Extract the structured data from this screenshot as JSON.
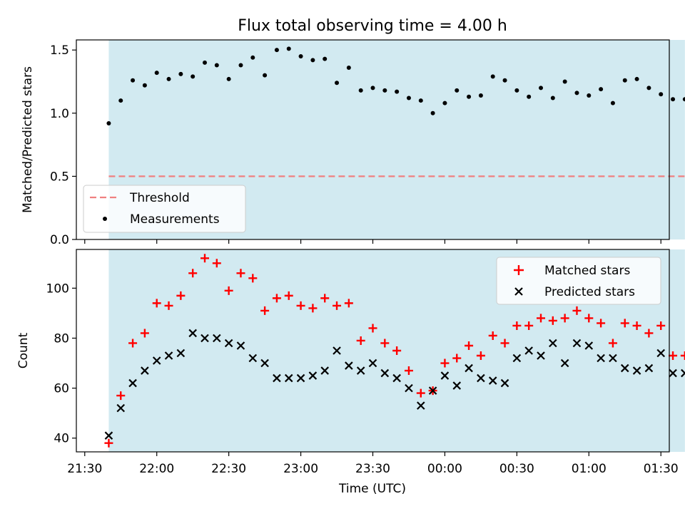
{
  "title": "Flux total observing time = 4.00 h",
  "colors": {
    "band": "#add8e6",
    "threshold": "#f08080",
    "measurement": "#000000",
    "matched": "#ff0000",
    "predicted": "#000000"
  },
  "chart_data": [
    {
      "type": "scatter",
      "ylabel": "Matched/Predicted stars",
      "ylim": [
        0,
        1.58
      ],
      "yticks": [
        0.0,
        0.5,
        1.0,
        1.5
      ],
      "ytick_labels": [
        "0.0",
        "0.5",
        "1.0",
        "1.5"
      ],
      "shaded_span": [
        "21:40",
        "01:40"
      ],
      "legend": {
        "position": "lower-left",
        "entries": [
          "Threshold",
          "Measurements"
        ]
      },
      "threshold": {
        "name": "Threshold",
        "value": 0.5,
        "x_range": [
          "21:40",
          "01:40"
        ]
      },
      "series": [
        {
          "name": "Measurements",
          "x": [
            "21:40",
            "21:45",
            "21:50",
            "21:55",
            "22:00",
            "22:05",
            "22:10",
            "22:15",
            "22:20",
            "22:25",
            "22:30",
            "22:35",
            "22:40",
            "22:45",
            "22:50",
            "22:55",
            "23:00",
            "23:05",
            "23:10",
            "23:15",
            "23:20",
            "23:25",
            "23:30",
            "23:35",
            "23:40",
            "23:45",
            "23:50",
            "23:55",
            "00:00",
            "00:05",
            "00:10",
            "00:15",
            "00:20",
            "00:25",
            "00:30",
            "00:35",
            "00:40",
            "00:45",
            "00:50",
            "00:55",
            "01:00",
            "01:05",
            "01:10",
            "01:15",
            "01:20",
            "01:25",
            "01:30",
            "01:35",
            "01:40"
          ],
          "y": [
            0.92,
            1.1,
            1.26,
            1.22,
            1.32,
            1.27,
            1.31,
            1.29,
            1.4,
            1.38,
            1.27,
            1.38,
            1.44,
            1.3,
            1.5,
            1.51,
            1.45,
            1.42,
            1.43,
            1.24,
            1.36,
            1.18,
            1.2,
            1.18,
            1.17,
            1.12,
            1.1,
            1.0,
            1.08,
            1.18,
            1.13,
            1.14,
            1.29,
            1.26,
            1.18,
            1.13,
            1.2,
            1.12,
            1.25,
            1.16,
            1.14,
            1.19,
            1.08,
            1.26,
            1.27,
            1.2,
            1.15,
            1.11,
            1.11
          ]
        }
      ]
    },
    {
      "type": "scatter",
      "xlabel": "Time (UTC)",
      "ylabel": "Count",
      "ylim": [
        34.5,
        115.5
      ],
      "yticks": [
        40,
        60,
        80,
        100
      ],
      "ytick_labels": [
        "40",
        "60",
        "80",
        "100"
      ],
      "xticks": [
        "21:30",
        "22:00",
        "22:30",
        "23:00",
        "23:30",
        "00:00",
        "00:30",
        "01:00",
        "01:30"
      ],
      "shaded_span": [
        "21:40",
        "01:40"
      ],
      "legend": {
        "position": "top-right",
        "entries": [
          "Matched stars",
          "Predicted stars"
        ]
      },
      "series": [
        {
          "name": "Matched stars",
          "marker": "+",
          "x": [
            "21:40",
            "21:45",
            "21:50",
            "21:55",
            "22:00",
            "22:05",
            "22:10",
            "22:15",
            "22:20",
            "22:25",
            "22:30",
            "22:35",
            "22:40",
            "22:45",
            "22:50",
            "22:55",
            "23:00",
            "23:05",
            "23:10",
            "23:15",
            "23:20",
            "23:25",
            "23:30",
            "23:35",
            "23:40",
            "23:45",
            "23:50",
            "23:55",
            "00:00",
            "00:05",
            "00:10",
            "00:15",
            "00:20",
            "00:25",
            "00:30",
            "00:35",
            "00:40",
            "00:45",
            "00:50",
            "00:55",
            "01:00",
            "01:05",
            "01:10",
            "01:15",
            "01:20",
            "01:25",
            "01:30",
            "01:35",
            "01:40"
          ],
          "y": [
            38,
            57,
            78,
            82,
            94,
            93,
            97,
            106,
            112,
            110,
            99,
            106,
            104,
            91,
            96,
            97,
            93,
            92,
            96,
            93,
            94,
            79,
            84,
            78,
            75,
            67,
            58,
            59,
            70,
            72,
            77,
            73,
            81,
            78,
            85,
            85,
            88,
            87,
            88,
            91,
            88,
            86,
            78,
            86,
            85,
            82,
            85,
            73,
            73
          ]
        },
        {
          "name": "Predicted stars",
          "marker": "x",
          "x": [
            "21:40",
            "21:45",
            "21:50",
            "21:55",
            "22:00",
            "22:05",
            "22:10",
            "22:15",
            "22:20",
            "22:25",
            "22:30",
            "22:35",
            "22:40",
            "22:45",
            "22:50",
            "22:55",
            "23:00",
            "23:05",
            "23:10",
            "23:15",
            "23:20",
            "23:25",
            "23:30",
            "23:35",
            "23:40",
            "23:45",
            "23:50",
            "23:55",
            "00:00",
            "00:05",
            "00:10",
            "00:15",
            "00:20",
            "00:25",
            "00:30",
            "00:35",
            "00:40",
            "00:45",
            "00:50",
            "00:55",
            "01:00",
            "01:05",
            "01:10",
            "01:15",
            "01:20",
            "01:25",
            "01:30",
            "01:35",
            "01:40"
          ],
          "y": [
            41,
            52,
            62,
            67,
            71,
            73,
            74,
            82,
            80,
            80,
            78,
            77,
            72,
            70,
            64,
            64,
            64,
            65,
            67,
            75,
            69,
            67,
            70,
            66,
            64,
            60,
            53,
            59,
            65,
            61,
            68,
            64,
            63,
            62,
            72,
            75,
            73,
            78,
            70,
            78,
            77,
            72,
            72,
            68,
            67,
            68,
            74,
            66,
            66
          ]
        }
      ]
    }
  ]
}
